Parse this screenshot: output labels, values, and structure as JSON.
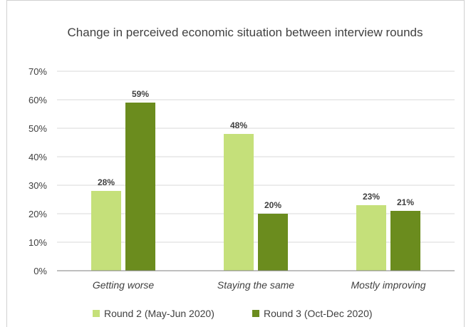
{
  "chart_data": {
    "type": "bar",
    "title": "Change in perceived economic situation between interview rounds",
    "categories": [
      "Getting worse",
      "Staying the same",
      "Mostly improving"
    ],
    "series": [
      {
        "name": "Round 2 (May-Jun 2020)",
        "values": [
          28,
          48,
          23
        ],
        "labels": [
          "28%",
          "48%",
          "23%"
        ]
      },
      {
        "name": "Round 3 (Oct-Dec 2020)",
        "values": [
          59,
          20,
          21
        ],
        "labels": [
          "59%",
          "20%",
          "21%"
        ]
      }
    ],
    "yticks": [
      "0%",
      "10%",
      "20%",
      "30%",
      "40%",
      "50%",
      "60%",
      "70%"
    ],
    "ylim": [
      0,
      70
    ],
    "grid": true,
    "legend_position": "bottom",
    "colors": [
      "#c5e07a",
      "#6b8c1e"
    ],
    "gridline_color": "#d9d9d9",
    "axis_color": "#7f7f7f"
  }
}
